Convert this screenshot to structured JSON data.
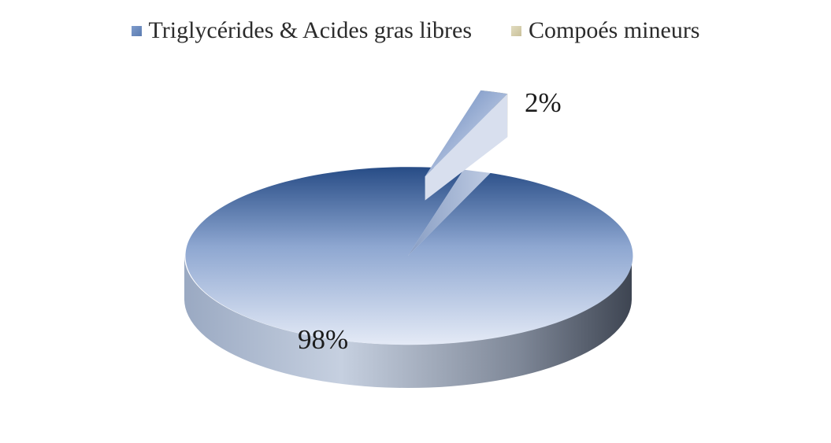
{
  "chart_data": {
    "type": "pie",
    "style": "3d-exploded",
    "legend_position": "top",
    "slices": [
      {
        "label": "Triglycérides & Acides gras libres",
        "value": 98,
        "data_label": "98%",
        "color": "#5a7bb0"
      },
      {
        "label": "Compoés mineurs",
        "value": 2,
        "data_label": "2%",
        "color": "#c9c19a"
      }
    ]
  }
}
